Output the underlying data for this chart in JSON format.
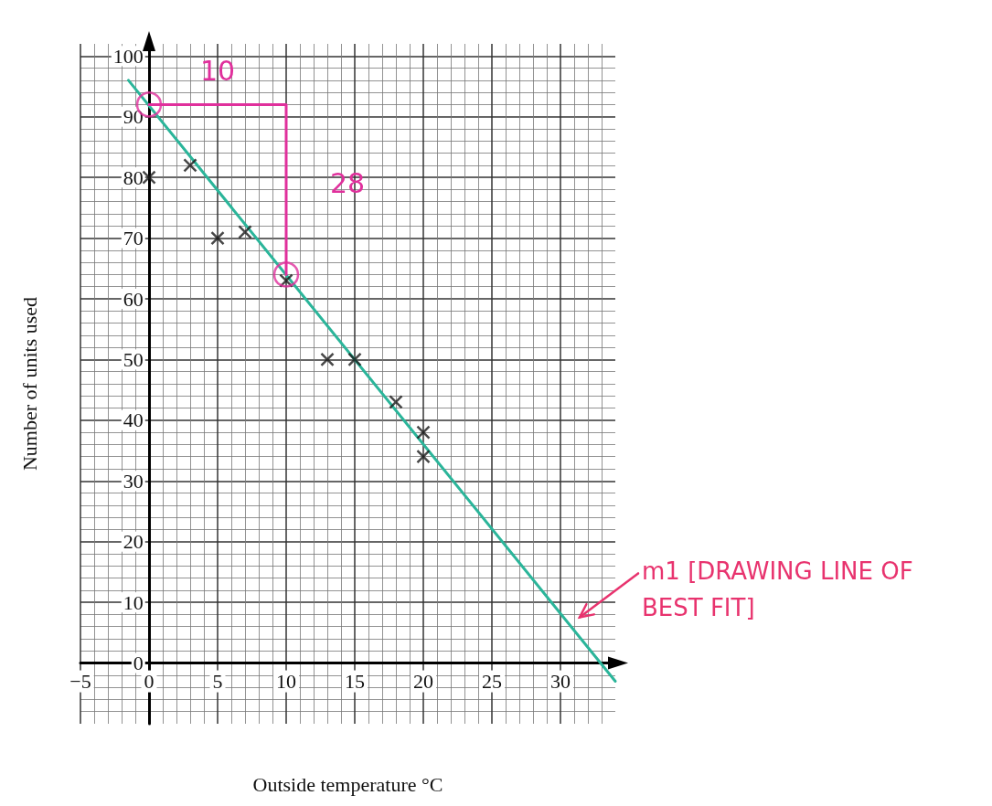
{
  "chart_data": {
    "type": "scatter",
    "xlabel": "Outside temperature °C",
    "ylabel": "Number of units used",
    "xlim": [
      -5,
      34
    ],
    "ylim": [
      -10,
      102
    ],
    "xticks": [
      -5,
      0,
      5,
      10,
      15,
      20,
      25,
      30
    ],
    "yticks": [
      0,
      10,
      20,
      30,
      40,
      50,
      60,
      70,
      80,
      90,
      100
    ],
    "grid": true,
    "series": [
      {
        "marker": "cross",
        "color": "#1a1a1a",
        "x": [
          0,
          3,
          5,
          7,
          10,
          13,
          15,
          18,
          20,
          20
        ],
        "values": [
          80,
          82,
          70,
          71,
          63,
          50,
          50,
          43,
          38,
          34
        ]
      },
      {
        "type": "line",
        "marker": "none",
        "color": "#2bb59a",
        "x": [
          -1.5,
          34
        ],
        "values": [
          96,
          -3
        ]
      },
      {
        "type": "line",
        "marker": "none",
        "color": "#e0309c",
        "x": [
          0,
          10,
          10
        ],
        "values": [
          92,
          92,
          64
        ]
      },
      {
        "marker": "circle",
        "color": "#e0309c",
        "x": [
          0,
          10
        ],
        "values": [
          92,
          64
        ]
      }
    ],
    "annotations": [
      "10",
      "28",
      "m1 [DRAWING LINE OF BEST FIT]"
    ]
  }
}
